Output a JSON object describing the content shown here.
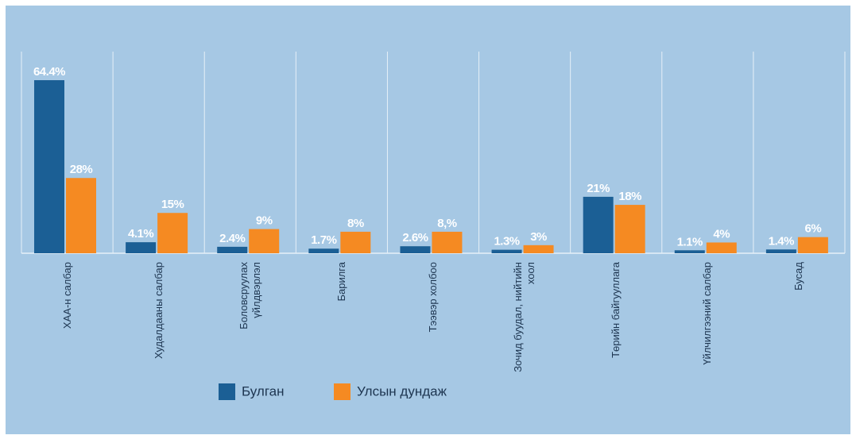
{
  "chart_data": {
    "type": "bar",
    "categories": [
      "ХАА-н салбар",
      "Худалдааны салбар",
      "Боловсруулах үйлдвэрлэл",
      "Барилга",
      "Тээвэр холбоо",
      "Зочид буудал, нийтийн хоол",
      "Төрийн байгууллага",
      "Үйлчилгээний салбар",
      "Бусад"
    ],
    "series": [
      {
        "name": "Булган",
        "color": "#1b5f95",
        "values": [
          64.4,
          4.1,
          2.4,
          1.7,
          2.6,
          1.3,
          21,
          1.1,
          1.4
        ],
        "value_labels": [
          "64.4%",
          "4.1%",
          "2.4%",
          "1.7%",
          "2.6%",
          "1.3%",
          "21%",
          "1.1%",
          "1.4%"
        ]
      },
      {
        "name": "Улсын дундаж",
        "color": "#f58a22",
        "values": [
          28,
          15,
          9,
          8,
          8,
          3,
          18,
          4,
          6
        ],
        "value_labels": [
          "28%",
          "15%",
          "9%",
          "8%",
          "8,%",
          "3%",
          "18%",
          "4%",
          "6%"
        ]
      }
    ]
  }
}
